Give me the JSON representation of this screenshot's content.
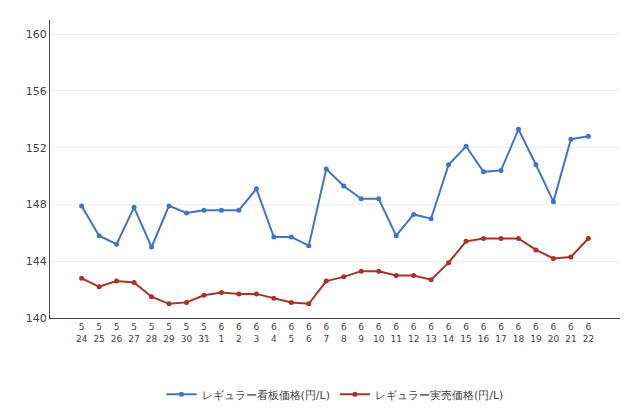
{
  "chart_data": {
    "type": "line",
    "categories": [
      "5\n24",
      "5\n25",
      "5\n26",
      "5\n27",
      "5\n28",
      "5\n29",
      "5\n30",
      "5\n31",
      "6\n1",
      "6\n2",
      "6\n3",
      "6\n4",
      "6\n5",
      "6\n6",
      "6\n7",
      "6\n8",
      "6\n9",
      "6\n10",
      "6\n11",
      "6\n12",
      "6\n13",
      "6\n14",
      "6\n15",
      "6\n16",
      "6\n17",
      "6\n18",
      "6\n19",
      "6\n20",
      "6\n21",
      "6\n22"
    ],
    "series": [
      {
        "name": "レギュラー看板価格(円/L)",
        "color": "#4472C4",
        "marker": "circle",
        "line_style": "solid",
        "values": [
          147.9,
          145.8,
          145.2,
          147.8,
          145.0,
          147.9,
          147.4,
          147.6,
          147.6,
          147.6,
          149.1,
          145.7,
          145.7,
          145.1,
          150.5,
          149.3,
          148.4,
          148.4,
          145.8,
          147.3,
          147.0,
          150.8,
          152.1,
          150.3,
          150.4,
          153.3,
          150.8,
          148.2,
          152.6,
          152.8
        ]
      },
      {
        "name": "レギュラー実売価格(円/L)",
        "color": "#A93226",
        "marker": "circle",
        "line_style": "solid",
        "values": [
          142.8,
          142.2,
          142.6,
          142.5,
          141.5,
          141.0,
          141.1,
          141.6,
          141.8,
          141.7,
          141.7,
          141.4,
          141.1,
          141.0,
          142.6,
          142.9,
          143.3,
          143.3,
          143.0,
          143.0,
          142.7,
          143.9,
          145.4,
          145.6,
          145.6,
          145.6,
          144.8,
          144.2,
          144.3,
          145.6
        ]
      }
    ],
    "ylim": [
      140,
      161
    ],
    "yticks": [
      140,
      144,
      148,
      152,
      156,
      160
    ],
    "grid": true,
    "legend": "bottom"
  }
}
